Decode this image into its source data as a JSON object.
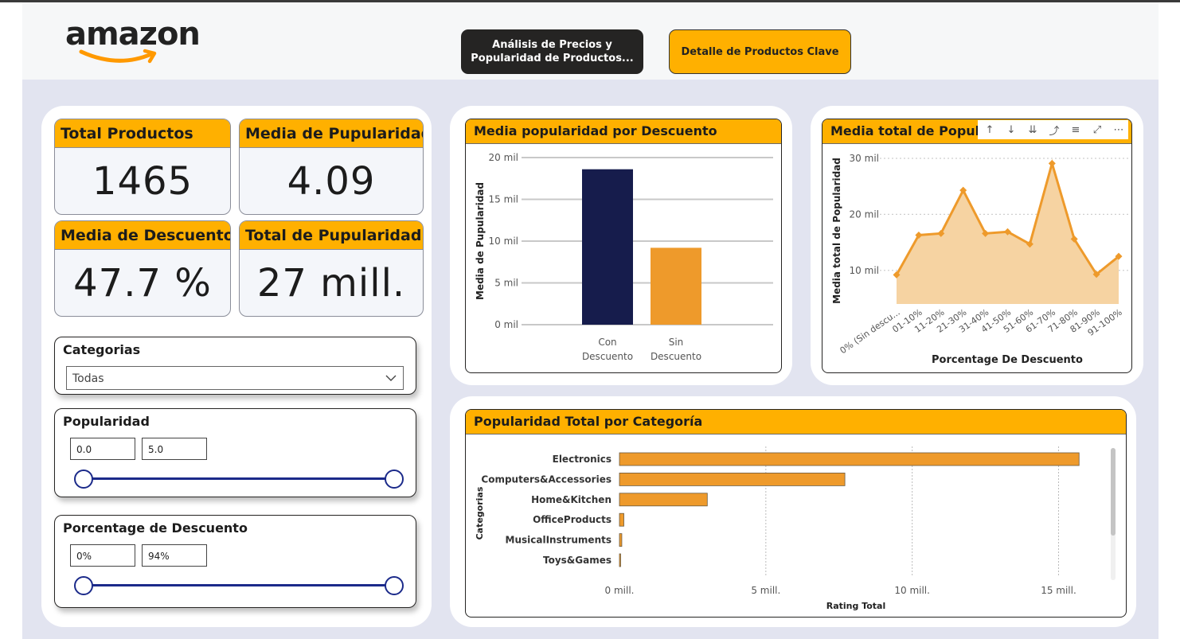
{
  "header": {
    "logo_text": "amazon",
    "nav": [
      {
        "label_line1": "Análisis de Precios y",
        "label_line2": "Popularidad de Productos..."
      },
      {
        "label": "Detalle de Productos Clave"
      }
    ]
  },
  "cards": [
    {
      "title": "Total Productos",
      "value": "1465"
    },
    {
      "title": "Media de Pupularidad",
      "value": "4.09"
    },
    {
      "title": "Media de Descuento",
      "value": "47.7 %"
    },
    {
      "title": "Total de Pupularidad",
      "value": "27 mill."
    }
  ],
  "slicers": {
    "categorias": {
      "title": "Categorias",
      "selected": "Todas"
    },
    "popularidad": {
      "title": "Popularidad",
      "min": "0.0",
      "max": "5.0",
      "low_fraction": 0,
      "high_fraction": 1
    },
    "descuento": {
      "title": "Porcentage de Descuento",
      "min": "0%",
      "max": "94%",
      "low_fraction": 0,
      "high_fraction": 1
    }
  },
  "toolbar_icons": [
    "arrow-up-icon",
    "arrow-down-icon",
    "double-arrow-down-icon",
    "drill-icon",
    "filter-icon",
    "focus-mode-icon",
    "more-options-icon"
  ],
  "colors": {
    "accent": "#ffb000",
    "navy": "#161c4c",
    "orange": "#ee9a2b",
    "slider": "#1b2a8a"
  },
  "chart_data": [
    {
      "type": "bar",
      "title": "Media popularidad por Descuento",
      "ylabel": "Media de Pupularidad",
      "xlabel": "",
      "categories": [
        "Con Descuento",
        "Sin Descuento"
      ],
      "category_lines": [
        [
          "Con",
          "Descuento"
        ],
        [
          "Sin",
          "Descuento"
        ]
      ],
      "values": [
        18600,
        9200
      ],
      "bar_colors": [
        "#161c4c",
        "#ee9a2b"
      ],
      "ylim": [
        0,
        20000
      ],
      "yticks": [
        {
          "v": 0,
          "label": "0 mil"
        },
        {
          "v": 5000,
          "label": "5 mil"
        },
        {
          "v": 10000,
          "label": "10 mil"
        },
        {
          "v": 15000,
          "label": "15 mil"
        },
        {
          "v": 20000,
          "label": "20 mil"
        }
      ],
      "grid": true
    },
    {
      "type": "area",
      "title": "Media total de Populari",
      "ylabel": "Media total de Popularidad",
      "xlabel": "Porcentage De Descuento",
      "categories": [
        "0% (Sin descu...",
        "01-10%",
        "11-20%",
        "21-30%",
        "31-40%",
        "41-50%",
        "51-60%",
        "61-70%",
        "71-80%",
        "81-90%",
        "91-100%"
      ],
      "values": [
        9.2,
        16.3,
        16.6,
        24.3,
        16.6,
        16.9,
        14.7,
        29.1,
        15.6,
        9.3,
        12.5
      ],
      "ylim": [
        4,
        31
      ],
      "yticks": [
        {
          "v": 10,
          "label": "10 mil"
        },
        {
          "v": 20,
          "label": "20 mil"
        },
        {
          "v": 30,
          "label": "30 mil"
        }
      ],
      "grid": true
    },
    {
      "type": "bar",
      "orientation": "horizontal",
      "title": "Popularidad Total por Categoría",
      "ylabel": "Categorias",
      "xlabel": "Rating Total",
      "categories": [
        "Electronics",
        "Computers&Accessories",
        "Home&Kitchen",
        "OfficeProducts",
        "MusicalInstruments",
        "Toys&Games"
      ],
      "values": [
        15.7,
        7.7,
        3.0,
        0.15,
        0.08,
        0.02
      ],
      "xlim": [
        0,
        16.7
      ],
      "xticks": [
        {
          "v": 0,
          "label": "0 mill."
        },
        {
          "v": 5,
          "label": "5 mill."
        },
        {
          "v": 10,
          "label": "10 mill."
        },
        {
          "v": 15,
          "label": "15 mill."
        }
      ],
      "grid": true
    }
  ]
}
